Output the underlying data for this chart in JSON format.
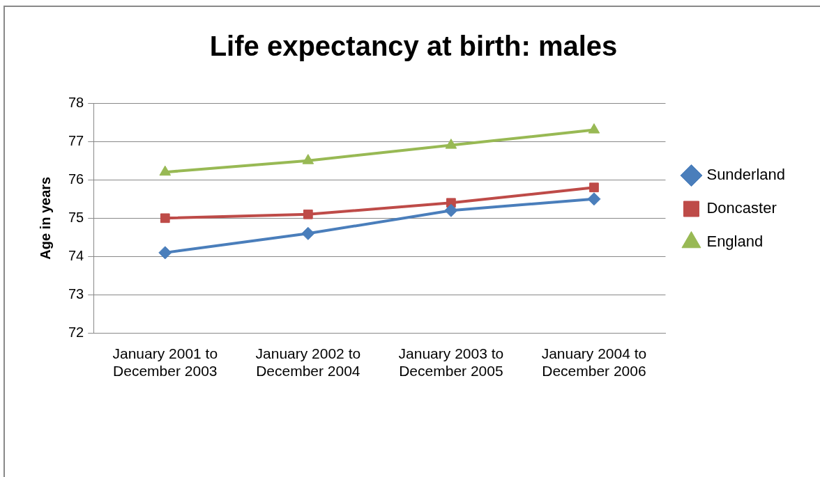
{
  "chart_data": {
    "type": "line",
    "title": "Life expectancy at birth: males",
    "ylabel": "Age in years",
    "categories": [
      "January 2001 to December 2003",
      "January 2002 to December 2004",
      "January 2003 to December 2005",
      "January 2004 to December 2006"
    ],
    "series": [
      {
        "name": "Sunderland",
        "color": "#4a7ebb",
        "marker": "diamond",
        "values": [
          74.1,
          74.6,
          75.2,
          75.5
        ]
      },
      {
        "name": "Doncaster",
        "color": "#be4b48",
        "marker": "square",
        "values": [
          75.0,
          75.1,
          75.4,
          75.8
        ]
      },
      {
        "name": "England",
        "color": "#98b954",
        "marker": "triangle",
        "values": [
          76.2,
          76.5,
          76.9,
          77.3
        ]
      }
    ],
    "ylim": [
      72,
      78
    ],
    "yticks": [
      72,
      73,
      74,
      75,
      76,
      77,
      78
    ],
    "grid": "y",
    "legend": "right",
    "line_style": "solid"
  }
}
